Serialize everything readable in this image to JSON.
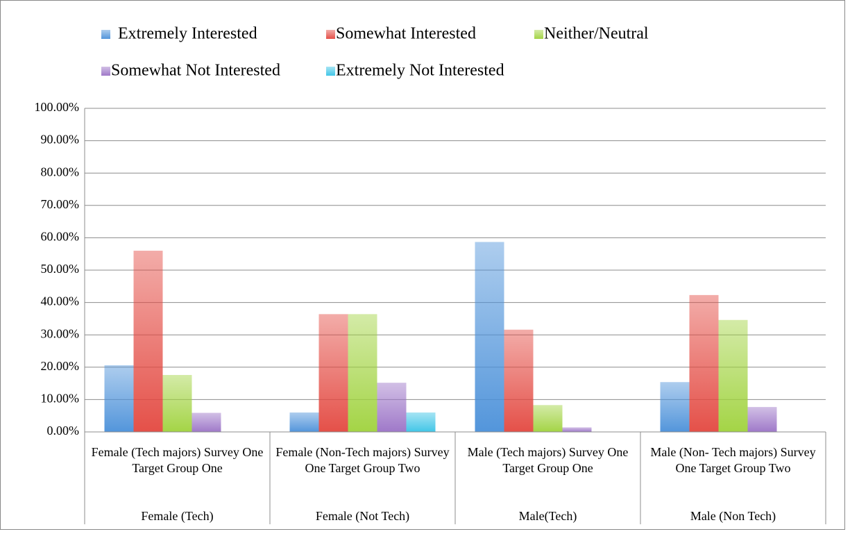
{
  "chart_data": {
    "type": "bar",
    "categories": [
      "Female (Tech majors) Survey One Target Group One",
      "Female (Non-Tech majors) Survey One Target Group Two",
      "Male (Tech majors) Survey One Target Group One",
      "Male (Non- Tech majors) Survey One Target Group Two"
    ],
    "groups": [
      "Female (Tech)",
      "Female (Not Tech)",
      "Male(Tech)",
      "Male (Non Tech)"
    ],
    "series": [
      {
        "name": "Extremely Interested",
        "color": "#4a90d9",
        "values": [
          20.6,
          6,
          58.7,
          15.4
        ]
      },
      {
        "name": "Somewhat Interested",
        "color": "#e3473f",
        "values": [
          56,
          36.4,
          31.6,
          42.3
        ]
      },
      {
        "name": "Neither/Neutral",
        "color": "#9fd23c",
        "values": [
          17.6,
          36.4,
          8.3,
          34.6
        ]
      },
      {
        "name": "Somewhat Not Interested",
        "color": "#9a72c6",
        "values": [
          5.9,
          15.2,
          1.4,
          7.7
        ]
      },
      {
        "name": "Extremely Not Interested",
        "color": "#38c3e6",
        "values": [
          0,
          6,
          0,
          0
        ]
      }
    ],
    "ylim": [
      0,
      100
    ],
    "yticks": [
      {
        "value": 0,
        "label": "0.00%"
      },
      {
        "value": 10,
        "label": "10.00%"
      },
      {
        "value": 20,
        "label": "20.00%"
      },
      {
        "value": 30,
        "label": "30.00%"
      },
      {
        "value": 40,
        "label": "40.00%"
      },
      {
        "value": 50,
        "label": "50.00%"
      },
      {
        "value": 60,
        "label": "60.00%"
      },
      {
        "value": 70,
        "label": "70.00%"
      },
      {
        "value": 80,
        "label": "80.00%"
      },
      {
        "value": 90,
        "label": "90.00%"
      },
      {
        "value": 100,
        "label": "100.00%"
      }
    ],
    "grid": true
  }
}
